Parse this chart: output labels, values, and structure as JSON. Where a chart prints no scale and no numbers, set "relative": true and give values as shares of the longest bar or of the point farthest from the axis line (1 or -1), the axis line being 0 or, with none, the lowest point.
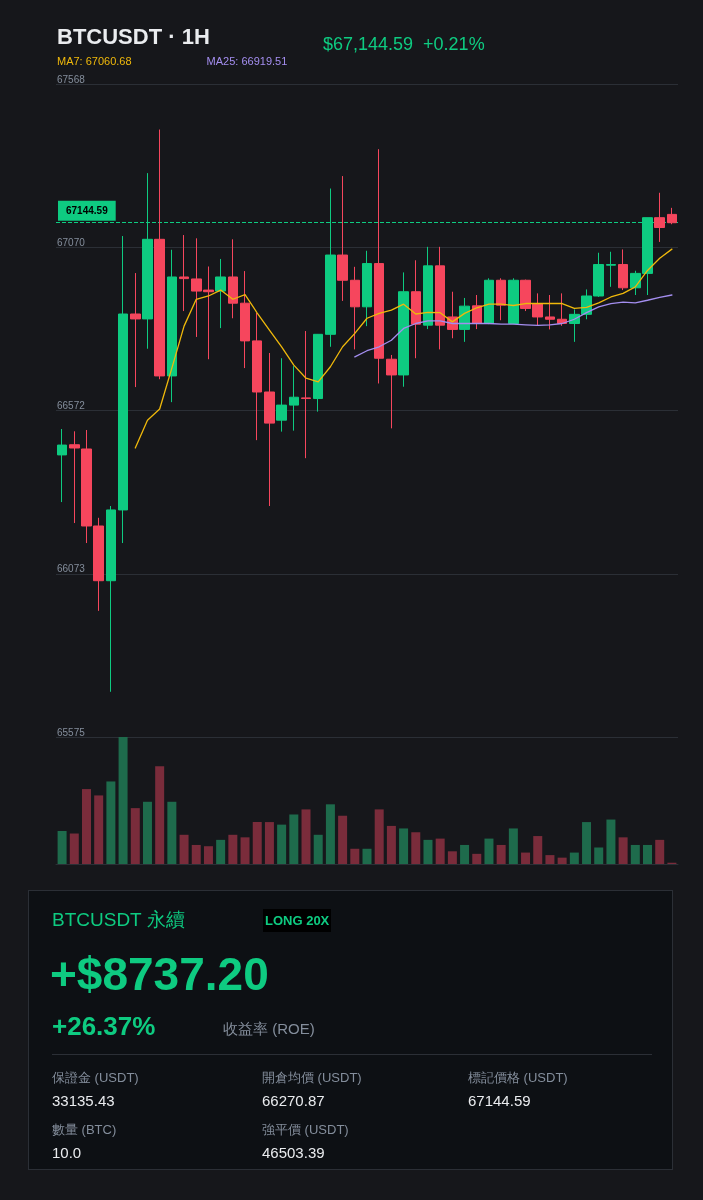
{
  "chart_data": [
    {
      "type": "candlestick",
      "title": "BTCUSDT · 1H",
      "subtitle": "$67,144.59  +0.21%",
      "categories": [
        null,
        null,
        null,
        null,
        null,
        null,
        null,
        null,
        null,
        null,
        null,
        null,
        null,
        null,
        null,
        null,
        null,
        null,
        null,
        null,
        null,
        null,
        null,
        null,
        null,
        null,
        null,
        null,
        null,
        null,
        null,
        null,
        null,
        null,
        null,
        null,
        null,
        null,
        null,
        null,
        null,
        null,
        null,
        null,
        null,
        null,
        null,
        null,
        null,
        null,
        null
      ],
      "ohlc": [
        [
          66436,
          66515,
          66292,
          66466
        ],
        [
          66467,
          66508,
          66228,
          66457
        ],
        [
          66454,
          66512,
          66167,
          66219
        ],
        [
          66219,
          66244,
          65960,
          66052
        ],
        [
          66052,
          66280,
          65713,
          66268
        ],
        [
          66268,
          67104,
          66167,
          66866
        ],
        [
          66866,
          66991,
          66643,
          66851
        ],
        [
          66851,
          67296,
          66760,
          67094
        ],
        [
          67094,
          67429,
          66667,
          66677
        ],
        [
          66677,
          67062,
          66597,
          66979
        ],
        [
          66979,
          67107,
          66875,
          66974
        ],
        [
          66973,
          67097,
          66796,
          66936
        ],
        [
          66939,
          67011,
          66728,
          66934
        ],
        [
          66936,
          67034,
          66823,
          66979
        ],
        [
          66979,
          67094,
          66853,
          66899
        ],
        [
          66899,
          66997,
          66701,
          66784
        ],
        [
          66784,
          66869,
          66481,
          66628
        ],
        [
          66628,
          66747,
          66280,
          66533
        ],
        [
          66542,
          66731,
          66507,
          66588
        ],
        [
          66588,
          66707,
          66510,
          66612
        ],
        [
          66610,
          66814,
          66426,
          66608
        ],
        [
          66608,
          66805,
          66568,
          66804
        ],
        [
          66804,
          67249,
          66766,
          67046
        ],
        [
          67046,
          67287,
          66906,
          66969
        ],
        [
          66969,
          67010,
          66758,
          66888
        ],
        [
          66888,
          67059,
          66829,
          67020
        ],
        [
          67020,
          67369,
          66654,
          66731
        ],
        [
          66728,
          66741,
          66517,
          66680
        ],
        [
          66680,
          66993,
          66644,
          66934
        ],
        [
          66934,
          67030,
          66731,
          66835
        ],
        [
          66832,
          67071,
          66820,
          67013
        ],
        [
          67013,
          67071,
          66758,
          66832
        ],
        [
          66857,
          66934,
          66792,
          66819
        ],
        [
          66819,
          66915,
          66781,
          66890
        ],
        [
          66891,
          66924,
          66820,
          66837
        ],
        [
          66837,
          66975,
          66835,
          66969
        ],
        [
          66969,
          66975,
          66847,
          66893
        ],
        [
          66837,
          66975,
          66835,
          66969
        ],
        [
          66969,
          66971,
          66875,
          66883
        ],
        [
          66898,
          66929,
          66832,
          66857
        ],
        [
          66857,
          66924,
          66819,
          66850
        ],
        [
          66850,
          66929,
          66830,
          66837
        ],
        [
          66837,
          66880,
          66781,
          66865
        ],
        [
          66865,
          66941,
          66850,
          66921
        ],
        [
          66921,
          67053,
          66918,
          67017
        ],
        [
          67015,
          67056,
          66949,
          67017
        ],
        [
          67017,
          67063,
          66939,
          66946
        ],
        [
          66946,
          66998,
          66924,
          66990
        ],
        [
          66990,
          67160,
          66924,
          67160
        ],
        [
          67160,
          67236,
          67086,
          67130
        ],
        [
          67170,
          67190,
          67140,
          67144.59
        ]
      ],
      "series": [
        {
          "name": "MA7: 67060.68",
          "type": "line",
          "color": "#f0b90b",
          "values": [
            null,
            null,
            null,
            null,
            null,
            null,
            66457,
            66542,
            66576,
            66701,
            66829,
            66911,
            66921,
            66939,
            66911,
            66925,
            66869,
            66817,
            66766,
            66710,
            66670,
            66659,
            66705,
            66766,
            66807,
            66853,
            66868,
            66878,
            66896,
            66866,
            66871,
            66870,
            66842,
            66868,
            66885,
            66896,
            66896,
            66892,
            66898,
            66898,
            66898,
            66898,
            66883,
            66886,
            66900,
            66918,
            66929,
            66949,
            66999,
            67036,
            67064
          ]
        },
        {
          "name": "MA25: 66919.51",
          "type": "line",
          "color": "#a48ef0",
          "values": [
            null,
            null,
            null,
            null,
            null,
            null,
            null,
            null,
            null,
            null,
            null,
            null,
            null,
            null,
            null,
            null,
            null,
            null,
            null,
            null,
            null,
            null,
            null,
            null,
            66735,
            66754,
            66766,
            66786,
            66822,
            66837,
            66845,
            66845,
            66837,
            66837,
            66837,
            66837,
            66835,
            66835,
            66833,
            66831,
            66833,
            66837,
            66850,
            66870,
            66888,
            66898,
            66902,
            66900,
            66908,
            66917,
            66924
          ]
        }
      ],
      "ylim": [
        65575,
        67568
      ],
      "yticks": [
        65575,
        66073,
        66572,
        67070,
        67568
      ],
      "grid": "y",
      "tick_labels": "y",
      "legend": "top left",
      "marker": "none",
      "ref_lines": [
        {
          "axis": "y",
          "value": 67144.59,
          "label": "67144.59",
          "color": "#0ecb81",
          "line_style": "dashed"
        }
      ]
    },
    {
      "type": "bar",
      "relative": true,
      "tick_labels": false,
      "categories": [
        null,
        null,
        null,
        null,
        null,
        null,
        null,
        null,
        null,
        null,
        null,
        null,
        null,
        null,
        null,
        null,
        null,
        null,
        null,
        null,
        null,
        null,
        null,
        null,
        null,
        null,
        null,
        null,
        null,
        null,
        null,
        null,
        null,
        null,
        null,
        null,
        null,
        null,
        null,
        null,
        null,
        null,
        null,
        null,
        null,
        null,
        null,
        null,
        null,
        null,
        null
      ],
      "values": [
        0.26,
        0.24,
        0.59,
        0.54,
        0.65,
        1,
        0.44,
        0.49,
        0.77,
        0.49,
        0.23,
        0.15,
        0.14,
        0.19,
        0.23,
        0.21,
        0.33,
        0.33,
        0.31,
        0.39,
        0.43,
        0.23,
        0.47,
        0.38,
        0.12,
        0.12,
        0.43,
        0.3,
        0.28,
        0.25,
        0.19,
        0.2,
        0.1,
        0.15,
        0.08,
        0.2,
        0.15,
        0.28,
        0.09,
        0.22,
        0.07,
        0.05,
        0.09,
        0.33,
        0.13,
        0.35,
        0.21,
        0.15,
        0.15,
        0.19,
        0.01
      ],
      "colors": [
        "#1e6b4c",
        "#7a2c3b",
        "#7a2c3b",
        "#7a2c3b",
        "#1e6b4c",
        "#1e6b4c",
        "#7a2c3b",
        "#1e6b4c",
        "#7a2c3b",
        "#1e6b4c",
        "#7a2c3b",
        "#7a2c3b",
        "#7a2c3b",
        "#1e6b4c",
        "#7a2c3b",
        "#7a2c3b",
        "#7a2c3b",
        "#7a2c3b",
        "#1e6b4c",
        "#1e6b4c",
        "#7a2c3b",
        "#1e6b4c",
        "#1e6b4c",
        "#7a2c3b",
        "#7a2c3b",
        "#1e6b4c",
        "#7a2c3b",
        "#7a2c3b",
        "#1e6b4c",
        "#7a2c3b",
        "#1e6b4c",
        "#7a2c3b",
        "#7a2c3b",
        "#1e6b4c",
        "#7a2c3b",
        "#1e6b4c",
        "#7a2c3b",
        "#1e6b4c",
        "#7a2c3b",
        "#7a2c3b",
        "#7a2c3b",
        "#7a2c3b",
        "#1e6b4c",
        "#1e6b4c",
        "#1e6b4c",
        "#1e6b4c",
        "#7a2c3b",
        "#1e6b4c",
        "#1e6b4c",
        "#7a2c3b",
        "#7a2c3b"
      ]
    },
    {
      "type": "other",
      "title": "BTCUSDT 永續",
      "subtitle": "LONG 20X",
      "annotations": [
        "+$8737.20",
        "+26.37%",
        "收益率 (ROE)",
        "保證金 (USDT)",
        "33135.43",
        "開倉均價 (USDT)",
        "66270.87",
        "標記價格 (USDT)",
        "67144.59",
        "數量 (BTC)",
        "10.0",
        "強平價 (USDT)",
        "46503.39"
      ]
    }
  ]
}
